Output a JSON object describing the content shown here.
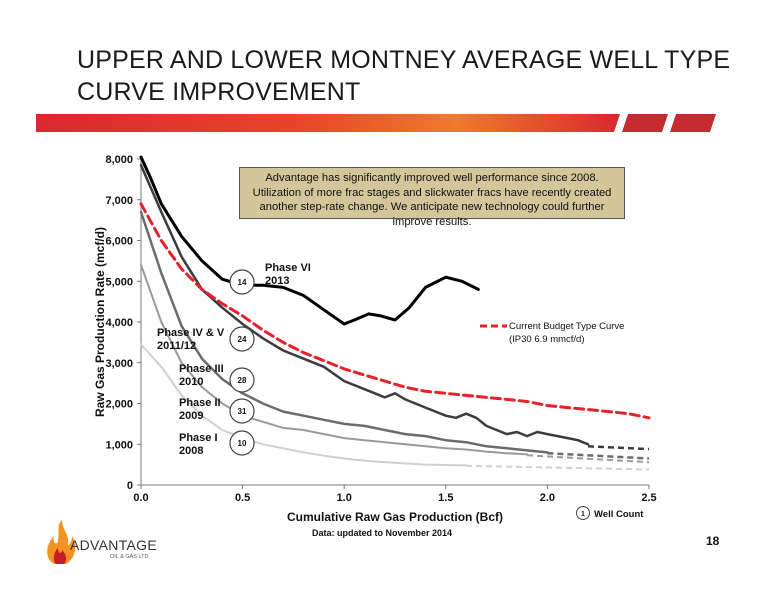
{
  "slide": {
    "title": "UPPER AND LOWER MONTNEY AVERAGE WELL TYPE CURVE IMPROVEMENT",
    "data_note": "Data: updated to November 2014",
    "page_number": "18",
    "callout": "Advantage has significantly improved well performance since 2008.  Utilization of more frac stages and slickwater fracs have recently created another step-rate change.  We anticipate new technology could further improve results.",
    "logo": {
      "name": "ADVANTAGE",
      "sub": "OIL & GAS LTD."
    },
    "colors": {
      "band_red": "#d9282f",
      "band_orange": "#f07a2a",
      "logo_red": "#c41e2a",
      "logo_orange": "#f39321"
    }
  },
  "chart_data": {
    "type": "line",
    "xlabel": "Cumulative Raw Gas Production (Bcf)",
    "ylabel": "Raw Gas Production Rate (mcf/d)",
    "xlim": [
      0,
      2.5
    ],
    "ylim": [
      0,
      8000
    ],
    "x_ticks": [
      "0.0",
      "0.5",
      "1.0",
      "1.5",
      "2.0",
      "2.5"
    ],
    "y_ticks": [
      "0",
      "1,000",
      "2,000",
      "3,000",
      "4,000",
      "5,000",
      "6,000",
      "7,000",
      "8,000"
    ],
    "legend": {
      "budget_label_line1": "Current Budget Type Curve",
      "budget_label_line2": "(IP30 6.9 mmcf/d)",
      "well_count_marker": "1",
      "well_count_label": "Well Count"
    },
    "series": [
      {
        "label": "Phase VI|2013",
        "well_count": "14",
        "color": "#000000",
        "width": 3,
        "points": [
          [
            0,
            8050
          ],
          [
            0.05,
            7500
          ],
          [
            0.1,
            6900
          ],
          [
            0.2,
            6100
          ],
          [
            0.3,
            5500
          ],
          [
            0.4,
            5050
          ],
          [
            0.5,
            4900
          ],
          [
            0.6,
            4900
          ],
          [
            0.7,
            4850
          ],
          [
            0.8,
            4650
          ],
          [
            0.9,
            4300
          ],
          [
            1.0,
            3950
          ],
          [
            1.05,
            4050
          ],
          [
            1.12,
            4200
          ],
          [
            1.18,
            4150
          ],
          [
            1.25,
            4050
          ],
          [
            1.32,
            4350
          ],
          [
            1.4,
            4850
          ],
          [
            1.5,
            5100
          ],
          [
            1.58,
            5000
          ],
          [
            1.66,
            4800
          ]
        ]
      },
      {
        "label": "Phase IV & V|2011/12",
        "well_count": "24",
        "color": "#3c3c3c",
        "width": 2.5,
        "points": [
          [
            0,
            7850
          ],
          [
            0.1,
            6700
          ],
          [
            0.2,
            5600
          ],
          [
            0.3,
            4800
          ],
          [
            0.4,
            4350
          ],
          [
            0.5,
            3950
          ],
          [
            0.6,
            3600
          ],
          [
            0.7,
            3300
          ],
          [
            0.8,
            3100
          ],
          [
            0.9,
            2900
          ],
          [
            1.0,
            2550
          ],
          [
            1.1,
            2350
          ],
          [
            1.2,
            2150
          ],
          [
            1.25,
            2250
          ],
          [
            1.3,
            2100
          ],
          [
            1.4,
            1900
          ],
          [
            1.5,
            1700
          ],
          [
            1.55,
            1650
          ],
          [
            1.6,
            1750
          ],
          [
            1.65,
            1650
          ],
          [
            1.7,
            1450
          ],
          [
            1.8,
            1250
          ],
          [
            1.85,
            1300
          ],
          [
            1.9,
            1200
          ],
          [
            1.95,
            1300
          ],
          [
            2.0,
            1250
          ],
          [
            2.1,
            1150
          ],
          [
            2.15,
            1100
          ],
          [
            2.2,
            1000
          ]
        ],
        "forecast": [
          [
            2.2,
            950
          ],
          [
            2.5,
            880
          ]
        ]
      },
      {
        "label": "Phase III|2010",
        "well_count": "28",
        "color": "#6b6b6b",
        "width": 2.5,
        "points": [
          [
            0,
            6700
          ],
          [
            0.1,
            5200
          ],
          [
            0.2,
            3900
          ],
          [
            0.3,
            3100
          ],
          [
            0.4,
            2600
          ],
          [
            0.5,
            2250
          ],
          [
            0.6,
            2000
          ],
          [
            0.7,
            1800
          ],
          [
            0.8,
            1700
          ],
          [
            0.9,
            1600
          ],
          [
            1.0,
            1500
          ],
          [
            1.1,
            1450
          ],
          [
            1.2,
            1350
          ],
          [
            1.3,
            1250
          ],
          [
            1.4,
            1200
          ],
          [
            1.5,
            1100
          ],
          [
            1.6,
            1050
          ],
          [
            1.7,
            950
          ],
          [
            1.8,
            900
          ],
          [
            1.9,
            850
          ],
          [
            2.0,
            800
          ]
        ],
        "forecast": [
          [
            2.0,
            780
          ],
          [
            2.5,
            650
          ]
        ]
      },
      {
        "label": "Phase II|2009",
        "well_count": "31",
        "color": "#9a9a9a",
        "width": 2,
        "points": [
          [
            0,
            5400
          ],
          [
            0.1,
            4000
          ],
          [
            0.2,
            3000
          ],
          [
            0.3,
            2400
          ],
          [
            0.4,
            2000
          ],
          [
            0.5,
            1700
          ],
          [
            0.6,
            1550
          ],
          [
            0.7,
            1400
          ],
          [
            0.8,
            1350
          ],
          [
            0.9,
            1250
          ],
          [
            1.0,
            1150
          ],
          [
            1.1,
            1100
          ],
          [
            1.2,
            1050
          ],
          [
            1.3,
            1000
          ],
          [
            1.4,
            950
          ],
          [
            1.5,
            900
          ],
          [
            1.6,
            870
          ],
          [
            1.7,
            820
          ],
          [
            1.8,
            780
          ],
          [
            1.9,
            750
          ]
        ],
        "forecast": [
          [
            1.9,
            730
          ],
          [
            2.5,
            560
          ]
        ]
      },
      {
        "label": "Phase I|2008",
        "well_count": "10",
        "color": "#cfcfcf",
        "width": 2,
        "points": [
          [
            0,
            3450
          ],
          [
            0.1,
            2900
          ],
          [
            0.2,
            2200
          ],
          [
            0.3,
            1700
          ],
          [
            0.4,
            1350
          ],
          [
            0.5,
            1150
          ],
          [
            0.6,
            1000
          ],
          [
            0.7,
            900
          ],
          [
            0.8,
            800
          ],
          [
            0.9,
            720
          ],
          [
            1.0,
            650
          ],
          [
            1.1,
            600
          ],
          [
            1.2,
            560
          ],
          [
            1.3,
            530
          ],
          [
            1.4,
            500
          ],
          [
            1.5,
            490
          ],
          [
            1.6,
            480
          ]
        ],
        "forecast": [
          [
            1.6,
            470
          ],
          [
            2.5,
            380
          ]
        ]
      },
      {
        "label": "Current Budget Type Curve",
        "color": "#e8202a",
        "width": 3,
        "dashed": true,
        "points": [
          [
            0,
            6900
          ],
          [
            0.1,
            6000
          ],
          [
            0.2,
            5300
          ],
          [
            0.3,
            4800
          ],
          [
            0.4,
            4450
          ],
          [
            0.5,
            4150
          ],
          [
            0.6,
            3800
          ],
          [
            0.7,
            3500
          ],
          [
            0.8,
            3250
          ],
          [
            0.9,
            3050
          ],
          [
            1.0,
            2850
          ],
          [
            1.1,
            2700
          ],
          [
            1.2,
            2550
          ],
          [
            1.3,
            2400
          ],
          [
            1.4,
            2300
          ],
          [
            1.5,
            2250
          ],
          [
            1.6,
            2200
          ],
          [
            1.7,
            2150
          ],
          [
            1.8,
            2100
          ],
          [
            1.9,
            2050
          ],
          [
            2.0,
            1950
          ],
          [
            2.1,
            1900
          ],
          [
            2.2,
            1850
          ],
          [
            2.3,
            1800
          ],
          [
            2.4,
            1750
          ],
          [
            2.5,
            1650
          ]
        ]
      }
    ]
  }
}
